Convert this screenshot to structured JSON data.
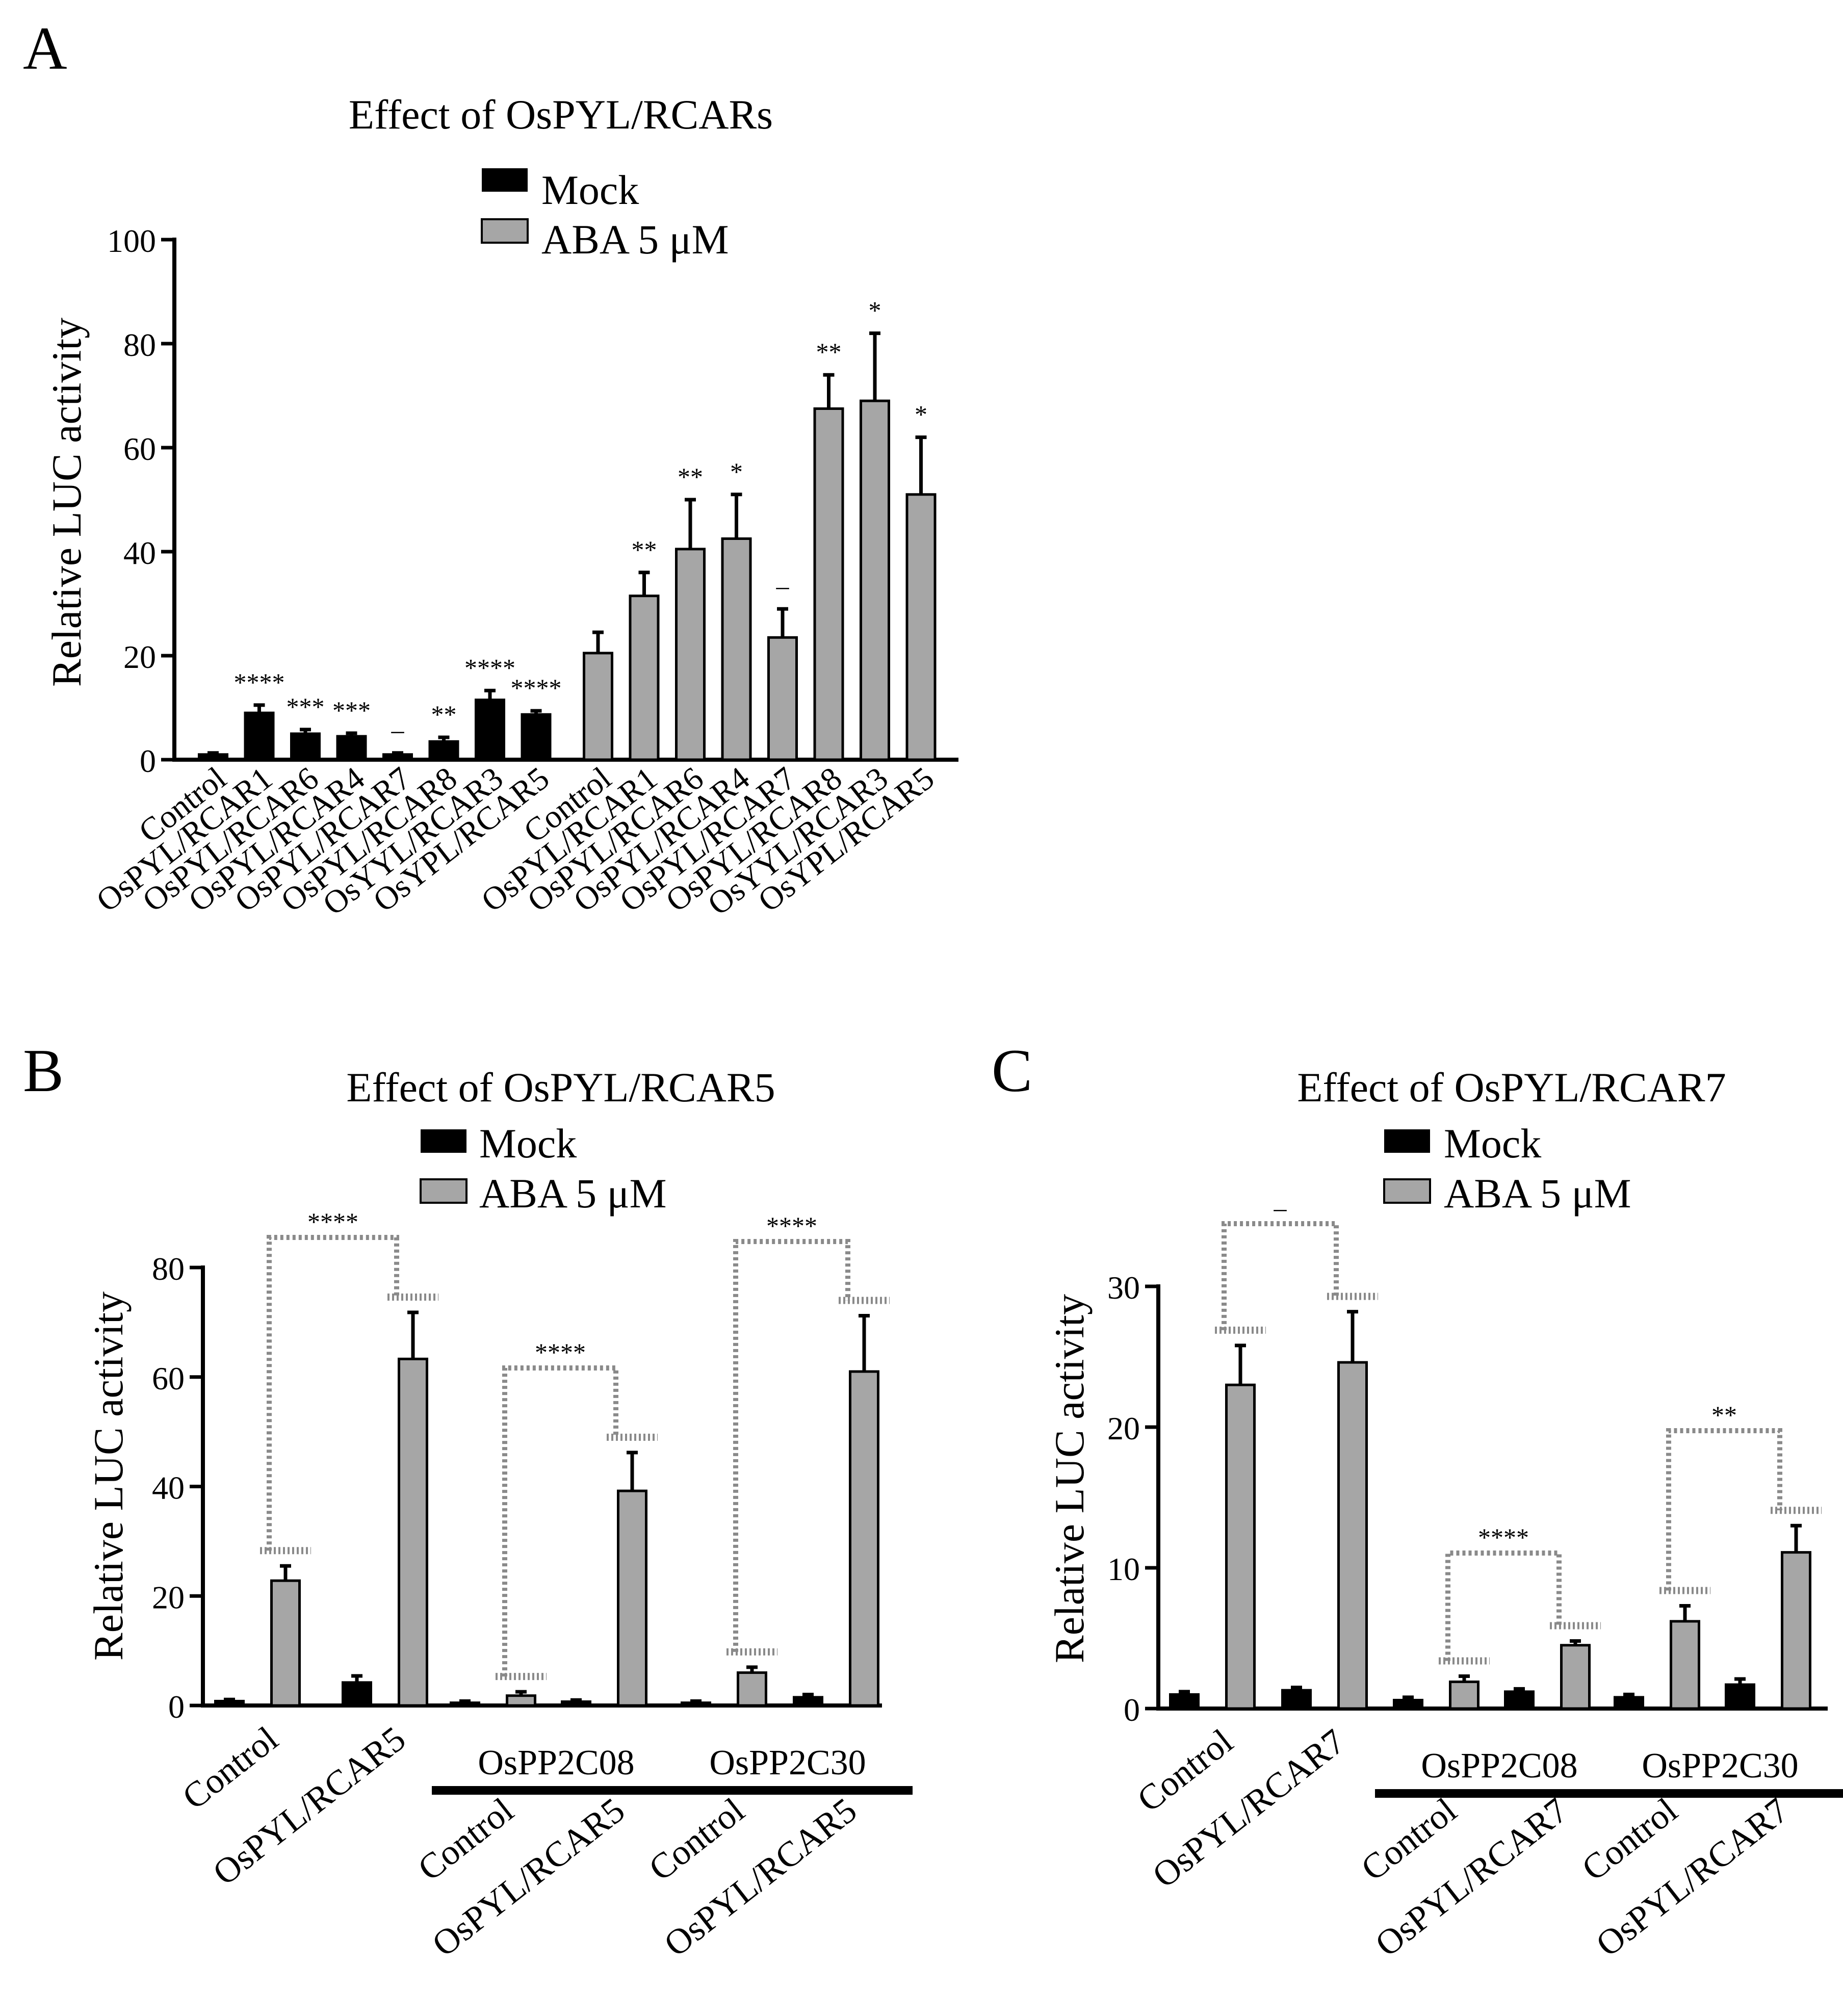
{
  "panels": [
    {
      "letter": "A",
      "title": "Effect of OsPYL/RCARs"
    },
    {
      "letter": "B",
      "title": "Effect of  OsPYL/RCAR5"
    },
    {
      "letter": "C",
      "title": "Effect of OsPYL/RCAR7"
    }
  ],
  "legend": {
    "mock": "Mock",
    "aba": "ABA 5 μM"
  },
  "colors": {
    "mock": "#000000",
    "aba": "#a6a6a6",
    "axis": "#000000",
    "bracket": "#8a8a8a"
  },
  "chart_data": [
    {
      "type": "bar",
      "title": "Effect of OsPYL/RCARs",
      "ylabel": "Relative LUC activity",
      "ylim": [
        0,
        100
      ],
      "yticks": [
        0,
        20,
        40,
        60,
        80,
        100
      ],
      "legend": [
        "Mock",
        "ABA 5 μM"
      ],
      "legend_position": "top",
      "categories": [
        "Control",
        "OsPYL/RCAR1",
        "OsPYL/RCAR6",
        "OsPYL/RCAR4",
        "OsPYL/RCAR7",
        "OsPYL/RCAR8",
        "OsYYL/RCAR3",
        "OsYPL/RCAR5"
      ],
      "series": [
        {
          "name": "Mock",
          "values": [
            1,
            9,
            5,
            4.5,
            1,
            3.5,
            11.5,
            8.7
          ],
          "errors": [
            0.3,
            1.5,
            0.8,
            0.6,
            0.3,
            0.8,
            1.8,
            0.7
          ],
          "significance": [
            "",
            "****",
            "***",
            "***",
            "–",
            "**",
            "****",
            "****"
          ]
        },
        {
          "name": "ABA 5 μM",
          "values": [
            20.5,
            31.5,
            40.5,
            42.5,
            23.5,
            67.5,
            69,
            51
          ],
          "errors": [
            4,
            4.5,
            9.5,
            8.5,
            5.5,
            6.5,
            13,
            11
          ],
          "significance": [
            "",
            "**",
            "**",
            "*",
            "–",
            "**",
            "*",
            "*"
          ]
        }
      ]
    },
    {
      "type": "bar",
      "title": "Effect of  OsPYL/RCAR5",
      "ylabel": "Relative LUC activity",
      "ylim": [
        0,
        80
      ],
      "yticks": [
        0,
        20,
        40,
        60,
        80
      ],
      "legend": [
        "Mock",
        "ABA 5 μM"
      ],
      "categories": [
        "Control",
        "OsPYL/RCAR5",
        "Control",
        "OsPYL/RCAR5",
        "Control",
        "OsPYL/RCAR5"
      ],
      "groups": [
        {
          "label": "OsPP2C08",
          "from": 2,
          "to": 3
        },
        {
          "label": "OsPP2C30",
          "from": 4,
          "to": 5
        }
      ],
      "series": [
        {
          "name": "Mock",
          "values": [
            0.8,
            4.2,
            0.5,
            0.7,
            0.5,
            1.5
          ],
          "errors": [
            0.3,
            1.2,
            0.3,
            0.3,
            0.3,
            0.5
          ]
        },
        {
          "name": "ABA 5 μM",
          "values": [
            22.8,
            63.3,
            1.8,
            39.2,
            6,
            61
          ],
          "errors": [
            2.7,
            8.5,
            0.7,
            7,
            1,
            10.2
          ]
        }
      ],
      "comparisons": [
        {
          "from": 0,
          "to": 1,
          "label": "****"
        },
        {
          "from": 2,
          "to": 3,
          "label": "****"
        },
        {
          "from": 4,
          "to": 5,
          "label": "****"
        }
      ]
    },
    {
      "type": "bar",
      "title": "Effect of OsPYL/RCAR7",
      "ylabel": "Relative LUC activity",
      "ylim": [
        0,
        30
      ],
      "yticks": [
        0,
        10,
        20,
        30
      ],
      "legend": [
        "Mock",
        "ABA 5 μM"
      ],
      "categories": [
        "Control",
        "OsPYL/RCAR7",
        "Control",
        "OsPYL/RCAR7",
        "Control",
        "OsPYL/RCAR7"
      ],
      "groups": [
        {
          "label": "OsPP2C08",
          "from": 2,
          "to": 3
        },
        {
          "label": "OsPP2C30",
          "from": 4,
          "to": 5
        }
      ],
      "series": [
        {
          "name": "Mock",
          "values": [
            1,
            1.3,
            0.6,
            1.2,
            0.8,
            1.7
          ],
          "errors": [
            0.2,
            0.2,
            0.2,
            0.2,
            0.2,
            0.4
          ]
        },
        {
          "name": "ABA 5 μM",
          "values": [
            23,
            24.6,
            1.9,
            4.5,
            6.2,
            11.1
          ],
          "errors": [
            2.8,
            3.6,
            0.4,
            0.3,
            1.1,
            1.9
          ]
        }
      ],
      "comparisons": [
        {
          "from": 0,
          "to": 1,
          "label": "–"
        },
        {
          "from": 2,
          "to": 3,
          "label": "****"
        },
        {
          "from": 4,
          "to": 5,
          "label": "**"
        }
      ]
    }
  ]
}
